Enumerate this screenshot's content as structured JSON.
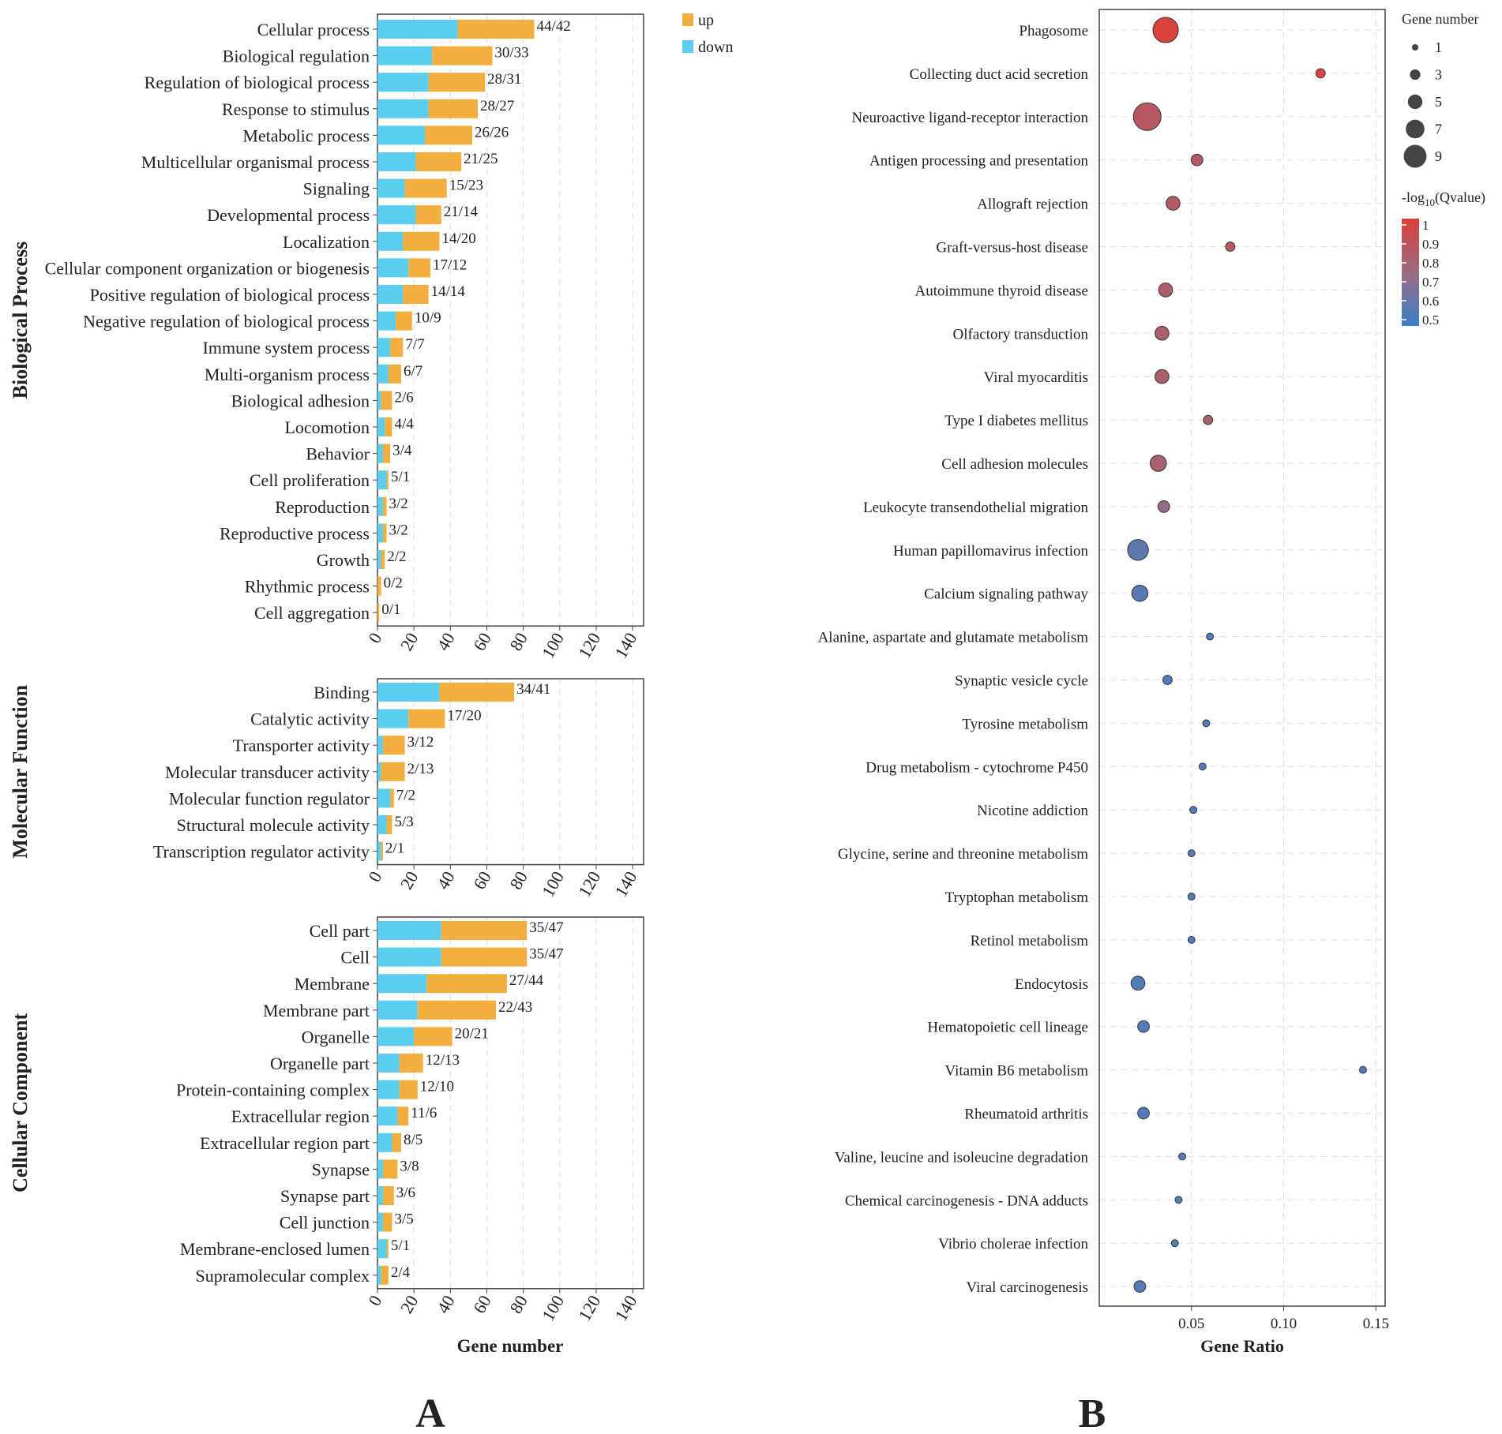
{
  "panel_labels": {
    "a": "A",
    "b": "B"
  },
  "colors": {
    "up": "#F2AE3E",
    "down": "#5BCEF0",
    "q_high": "#D9413B",
    "q_mid": "#9A6B80",
    "q_low": "#3C80C8"
  },
  "chart_data": [
    {
      "type": "bar",
      "subtype": "stacked-horizontal",
      "xlabel": "Gene number",
      "xlim": [
        0,
        140
      ],
      "xticks": [
        "0",
        "20",
        "40",
        "60",
        "80",
        "100",
        "120",
        "140"
      ],
      "legend": [
        {
          "key": "up",
          "label": "up"
        },
        {
          "key": "down",
          "label": "down"
        }
      ],
      "legend_position": "top-right",
      "groups": [
        {
          "title": "Biological Process",
          "categories": [
            "Cellular process",
            "Biological regulation",
            "Regulation of biological process",
            "Response to stimulus",
            "Metabolic process",
            "Multicellular organismal process",
            "Signaling",
            "Developmental process",
            "Localization",
            "Cellular component organization or biogenesis",
            "Positive regulation of biological process",
            "Negative regulation of biological process",
            "Immune system process",
            "Multi-organism process",
            "Biological adhesion",
            "Locomotion",
            "Behavior",
            "Cell proliferation",
            "Reproduction",
            "Reproductive process",
            "Growth",
            "Rhythmic process",
            "Cell aggregation"
          ],
          "down": [
            44,
            30,
            28,
            28,
            26,
            21,
            15,
            21,
            14,
            17,
            14,
            10,
            7,
            6,
            2,
            4,
            3,
            5,
            3,
            3,
            2,
            0,
            0
          ],
          "up": [
            42,
            33,
            31,
            27,
            26,
            25,
            23,
            14,
            20,
            12,
            14,
            9,
            7,
            7,
            6,
            4,
            4,
            1,
            2,
            2,
            2,
            2,
            1
          ],
          "labels": [
            "44/42",
            "30/33",
            "28/31",
            "28/27",
            "26/26",
            "21/25",
            "15/23",
            "21/14",
            "14/20",
            "17/12",
            "14/14",
            "10/9",
            "7/7",
            "6/7",
            "2/6",
            "4/4",
            "3/4",
            "5/1",
            "3/2",
            "3/2",
            "2/2",
            "0/2",
            "0/1"
          ]
        },
        {
          "title": "Molecular Function",
          "categories": [
            "Binding",
            "Catalytic activity",
            "Transporter activity",
            "Molecular transducer activity",
            "Molecular function regulator",
            "Structural molecule activity",
            "Transcription regulator activity"
          ],
          "down": [
            34,
            17,
            3,
            2,
            7,
            5,
            2
          ],
          "up": [
            41,
            20,
            12,
            13,
            2,
            3,
            1
          ],
          "labels": [
            "34/41",
            "17/20",
            "3/12",
            "2/13",
            "7/2",
            "5/3",
            "2/1"
          ]
        },
        {
          "title": "Cellular Component",
          "categories": [
            "Cell part",
            "Cell",
            "Membrane",
            "Membrane part",
            "Organelle",
            "Organelle part",
            "Protein-containing complex",
            "Extracellular region",
            "Extracellular region part",
            "Synapse",
            "Synapse part",
            "Cell junction",
            "Membrane-enclosed lumen",
            "Supramolecular complex"
          ],
          "down": [
            35,
            35,
            27,
            22,
            20,
            12,
            12,
            11,
            8,
            3,
            3,
            3,
            5,
            2
          ],
          "up": [
            47,
            47,
            44,
            43,
            21,
            13,
            10,
            6,
            5,
            8,
            6,
            5,
            1,
            4
          ],
          "labels": [
            "35/47",
            "35/47",
            "27/44",
            "22/43",
            "20/21",
            "12/13",
            "12/10",
            "11/6",
            "8/5",
            "3/8",
            "3/6",
            "3/5",
            "5/1",
            "2/4"
          ]
        }
      ]
    },
    {
      "type": "scatter",
      "subtype": "bubble",
      "xlabel": "Gene Ratio",
      "xlim": [
        0.0,
        0.155
      ],
      "xticks": [
        0.05,
        0.1,
        0.15
      ],
      "xtick_labels": [
        "0.05",
        "0.10",
        "0.15"
      ],
      "size_legend": {
        "title": "Gene number",
        "values": [
          "1",
          "3",
          "5",
          "7",
          "9"
        ]
      },
      "color_legend": {
        "title_prefix": "-log",
        "title_sub": "10",
        "title_suffix": "(Qvalue)",
        "ticks": [
          "1",
          "0.9",
          "0.8",
          "0.7",
          "0.6",
          "0.5"
        ],
        "range": [
          0.45,
          1.0
        ]
      },
      "points": [
        {
          "term": "Phagosome",
          "x": 0.036,
          "size": 9,
          "q": 1.0
        },
        {
          "term": "Collecting duct acid secretion",
          "x": 0.12,
          "size": 2,
          "q": 0.98
        },
        {
          "term": "Neuroactive ligand-receptor interaction",
          "x": 0.026,
          "size": 10,
          "q": 0.85
        },
        {
          "term": "Antigen processing and presentation",
          "x": 0.053,
          "size": 3,
          "q": 0.83
        },
        {
          "term": "Allograft rejection",
          "x": 0.04,
          "size": 4,
          "q": 0.83
        },
        {
          "term": "Graft-versus-host disease",
          "x": 0.071,
          "size": 2,
          "q": 0.82
        },
        {
          "term": "Autoimmune thyroid disease",
          "x": 0.036,
          "size": 4,
          "q": 0.81
        },
        {
          "term": "Olfactory transduction",
          "x": 0.034,
          "size": 4,
          "q": 0.81
        },
        {
          "term": "Viral myocarditis",
          "x": 0.034,
          "size": 4,
          "q": 0.81
        },
        {
          "term": "Type I diabetes mellitus",
          "x": 0.059,
          "size": 2,
          "q": 0.8
        },
        {
          "term": "Cell adhesion molecules",
          "x": 0.032,
          "size": 5,
          "q": 0.79
        },
        {
          "term": "Leukocyte transendothelial migration",
          "x": 0.035,
          "size": 3,
          "q": 0.7
        },
        {
          "term": "Human papillomavirus infection",
          "x": 0.021,
          "size": 7,
          "q": 0.55
        },
        {
          "term": "Calcium signaling pathway",
          "x": 0.022,
          "size": 5,
          "q": 0.53
        },
        {
          "term": "Alanine, aspartate and glutamate metabolism",
          "x": 0.06,
          "size": 1,
          "q": 0.52
        },
        {
          "term": "Synaptic vesicle cycle",
          "x": 0.037,
          "size": 2,
          "q": 0.52
        },
        {
          "term": "Tyrosine metabolism",
          "x": 0.058,
          "size": 1,
          "q": 0.52
        },
        {
          "term": "Drug metabolism - cytochrome P450",
          "x": 0.056,
          "size": 1,
          "q": 0.52
        },
        {
          "term": "Nicotine addiction",
          "x": 0.051,
          "size": 1,
          "q": 0.52
        },
        {
          "term": "Glycine, serine and threonine metabolism",
          "x": 0.05,
          "size": 1,
          "q": 0.52
        },
        {
          "term": "Tryptophan metabolism",
          "x": 0.05,
          "size": 1,
          "q": 0.52
        },
        {
          "term": "Retinol metabolism",
          "x": 0.05,
          "size": 1,
          "q": 0.52
        },
        {
          "term": "Endocytosis",
          "x": 0.021,
          "size": 4,
          "q": 0.52
        },
        {
          "term": "Hematopoietic cell lineage",
          "x": 0.024,
          "size": 3,
          "q": 0.52
        },
        {
          "term": "Vitamin B6 metabolism",
          "x": 0.143,
          "size": 1,
          "q": 0.52
        },
        {
          "term": "Rheumatoid arthritis",
          "x": 0.024,
          "size": 3,
          "q": 0.52
        },
        {
          "term": "Valine, leucine and isoleucine degradation",
          "x": 0.045,
          "size": 1,
          "q": 0.52
        },
        {
          "term": "Chemical carcinogenesis - DNA adducts",
          "x": 0.043,
          "size": 1,
          "q": 0.52
        },
        {
          "term": "Vibrio cholerae infection",
          "x": 0.041,
          "size": 1,
          "q": 0.52
        },
        {
          "term": "Viral carcinogenesis",
          "x": 0.022,
          "size": 3,
          "q": 0.52
        }
      ]
    }
  ]
}
